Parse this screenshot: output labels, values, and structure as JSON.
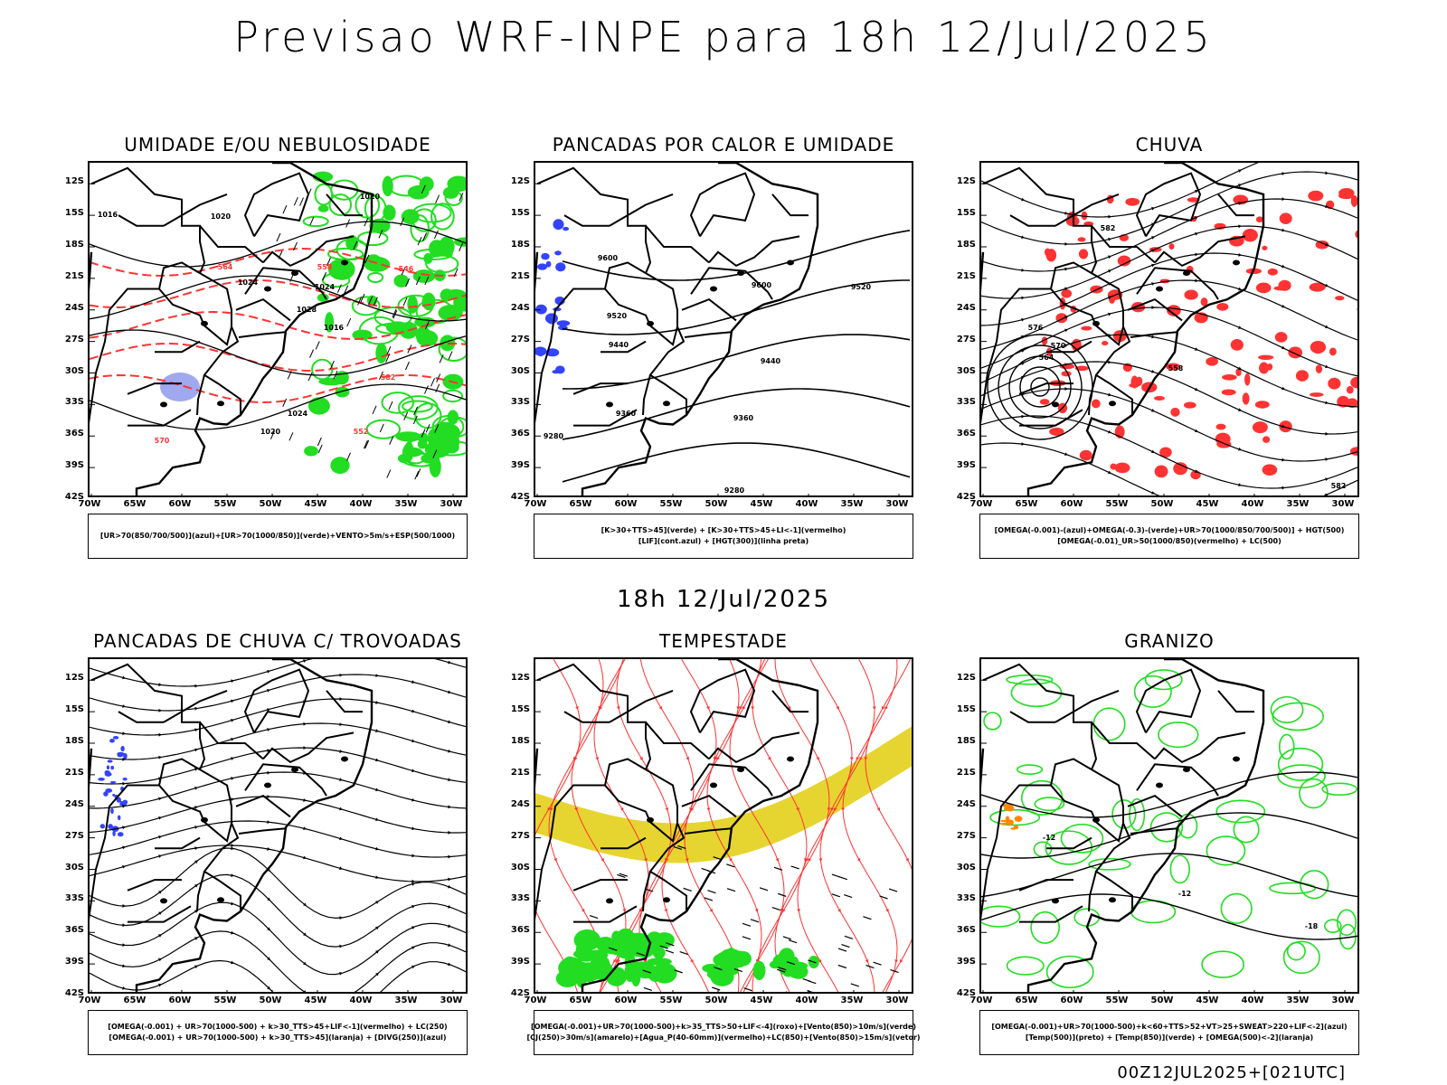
{
  "header": {
    "title": "Previsao WRF-INPE  para 18h 12/Jul/2025"
  },
  "mid_title": "18h 12/Jul/2025",
  "footer": "00Z12JUL2025+[021UTC]",
  "lat_labels": [
    "12S",
    "15S",
    "18S",
    "21S",
    "24S",
    "27S",
    "30S",
    "33S",
    "36S",
    "39S",
    "42S"
  ],
  "lon_labels": [
    "70W",
    "65W",
    "60W",
    "55W",
    "50W",
    "45W",
    "40W",
    "35W",
    "30W"
  ],
  "colors": {
    "red": "#ff3333",
    "green": "#22dd22",
    "blue": "#3344ff",
    "yellow": "#e6d530",
    "lavender": "#a0a8f0",
    "orange": "#ff8800"
  },
  "panels": [
    {
      "id": "umidade",
      "title": "UMIDADE E/OU NEBULOSIDADE",
      "legend": [
        "[UR>70(850/700/500)](azul)+[UR>70(1000/850)](verde)+VENTO>5m/s+ESP(500/1000)"
      ],
      "contour_labels": [
        "1016",
        "1020",
        "1024",
        "1028",
        "1016",
        "1020",
        "1024",
        "1024",
        "1020",
        "570",
        "564",
        "558",
        "552",
        "546",
        "582"
      ]
    },
    {
      "id": "pancadas-calor",
      "title": "PANCADAS POR CALOR E UMIDADE",
      "legend": [
        "[K>30+TTS>45](verde) + [K>30+TTS>45+LI<-1](vermelho)",
        "[LIF](cont.azul) + [HGT(300)](linha preta)"
      ],
      "contour_labels": [
        "9600",
        "9520",
        "9440",
        "9360",
        "9280",
        "9600",
        "9520",
        "9440",
        "9360",
        "9280"
      ]
    },
    {
      "id": "chuva",
      "title": "CHUVA",
      "legend": [
        "[OMEGA(-0.001)-(azul)+OMEGA(-0.3)-(verde)+UR>70(1000/850/700/500)] + HGT(500)",
        "[OMEGA(-0.01)_UR>50(1000/850)(vermelho) + LC(500)"
      ],
      "contour_labels": [
        "582",
        "576",
        "570",
        "564",
        "558",
        "582"
      ]
    },
    {
      "id": "trovoadas",
      "title": "PANCADAS DE CHUVA C/ TROVOADAS",
      "legend": [
        "[OMEGA(-0.001) + UR>70(1000-500) + k>30_TTS>45+LIF<-1](vermelho) + LC(250)",
        "[OMEGA(-0.001) + UR>70(1000-500) + k>30_TTS>45](laranja) + [DIVG(250)](azul)"
      ],
      "contour_labels": []
    },
    {
      "id": "tempestade",
      "title": "TEMPESTADE",
      "legend": [
        "[OMEGA(-0.001)+UR>70(1000-500)+k>35_TTS>50+LIF<-4](roxo)+[Vento(850)>10m/s](verde)",
        "[CJ(250)>30m/s](amarelo)+[Agua_P(40-60mm)](vermelho)+LC(850)+[Vento(850)>15m/s](vetor)"
      ],
      "contour_labels": []
    },
    {
      "id": "granizo",
      "title": "GRANIZO",
      "legend": [
        "[OMEGA(-0.001)+UR>70(1000-500)+k<60+TTS>52+VT>25+SWEAT>220+LIF<-2](azul)",
        "[Temp(500)](preto) + [Temp(850)](verde) + [OMEGA(500)<-2](laranja)"
      ],
      "contour_labels": [
        "-12",
        "-12",
        "-18"
      ]
    }
  ]
}
